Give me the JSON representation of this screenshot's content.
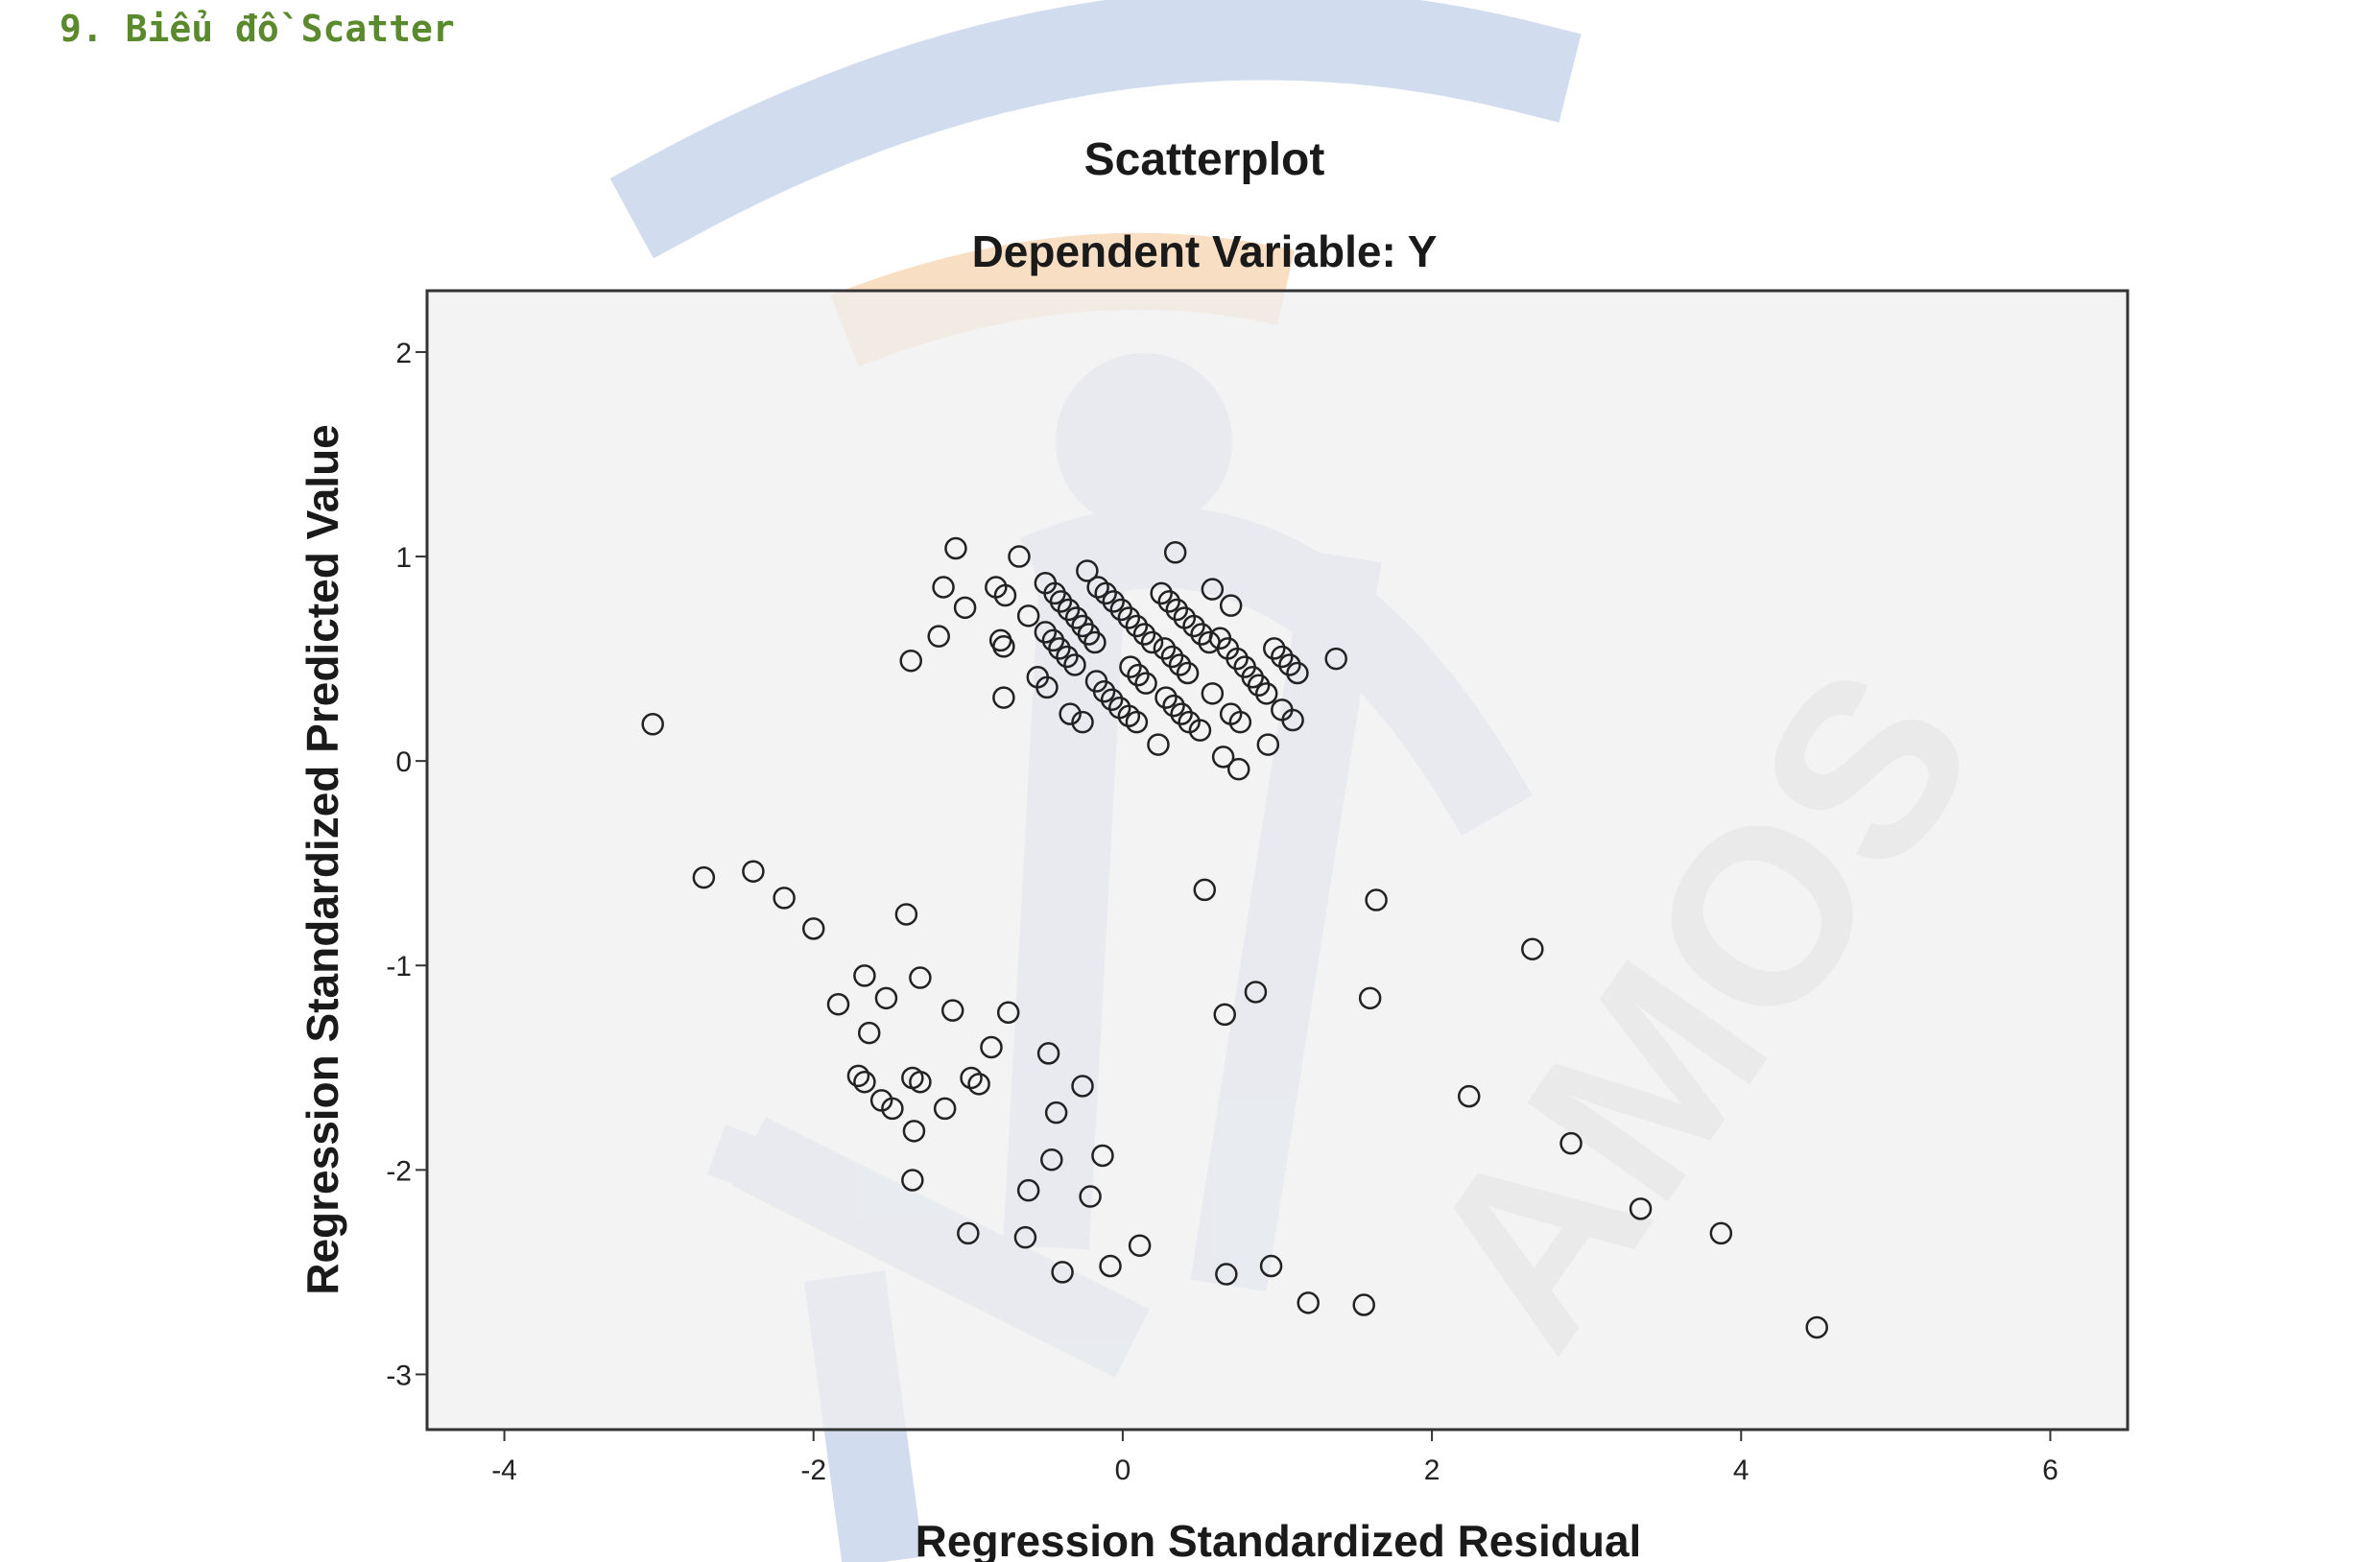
{
  "heading": "9. Biểu đồ Scatter",
  "watermark": {
    "text": "AMOS",
    "colors": {
      "blue": "#c9d7ec",
      "orange": "#f7d9b8",
      "gray": "#d6d6d6"
    }
  },
  "colors": {
    "plot_bg": "#efefef",
    "frame": "#333333",
    "marker": "#222222"
  },
  "chart_data": {
    "type": "scatter",
    "title": "Scatterplot",
    "subtitle": "Dependent Variable: Y",
    "xlabel": "Regression Standardized Residual",
    "ylabel": "Regression Standardized Predicted Value",
    "xlim": [
      -4.5,
      6.5
    ],
    "ylim": [
      -3.27,
      2.3
    ],
    "xticks": [
      -4,
      -2,
      0,
      2,
      4,
      6
    ],
    "yticks": [
      -3,
      -2,
      -1,
      0,
      1,
      2
    ],
    "grid": false,
    "marker": "hollow-circle",
    "points": [
      [
        -3.04,
        0.18
      ],
      [
        -1.08,
        1.04
      ],
      [
        -0.67,
        1.0
      ],
      [
        0.34,
        1.02
      ],
      [
        -1.16,
        0.85
      ],
      [
        -1.02,
        0.75
      ],
      [
        -0.82,
        0.85
      ],
      [
        -0.76,
        0.81
      ],
      [
        -1.19,
        0.61
      ],
      [
        -1.37,
        0.49
      ],
      [
        -0.77,
        0.56
      ],
      [
        -0.79,
        0.59
      ],
      [
        -0.61,
        0.71
      ],
      [
        -0.5,
        0.87
      ],
      [
        -0.44,
        0.82
      ],
      [
        -0.4,
        0.78
      ],
      [
        -0.35,
        0.74
      ],
      [
        -0.3,
        0.7
      ],
      [
        -0.26,
        0.66
      ],
      [
        -0.22,
        0.62
      ],
      [
        -0.18,
        0.58
      ],
      [
        -0.5,
        0.63
      ],
      [
        -0.45,
        0.59
      ],
      [
        -0.41,
        0.55
      ],
      [
        -0.36,
        0.51
      ],
      [
        -0.31,
        0.47
      ],
      [
        -0.55,
        0.41
      ],
      [
        -0.49,
        0.36
      ],
      [
        -0.77,
        0.31
      ],
      [
        -0.34,
        0.23
      ],
      [
        -0.26,
        0.19
      ],
      [
        -0.23,
        0.93
      ],
      [
        -0.16,
        0.85
      ],
      [
        -0.11,
        0.82
      ],
      [
        -0.06,
        0.78
      ],
      [
        -0.01,
        0.74
      ],
      [
        0.04,
        0.7
      ],
      [
        0.09,
        0.66
      ],
      [
        0.14,
        0.62
      ],
      [
        0.19,
        0.58
      ],
      [
        -0.17,
        0.39
      ],
      [
        -0.12,
        0.34
      ],
      [
        -0.07,
        0.3
      ],
      [
        -0.02,
        0.26
      ],
      [
        0.04,
        0.22
      ],
      [
        0.09,
        0.19
      ],
      [
        0.05,
        0.46
      ],
      [
        0.1,
        0.42
      ],
      [
        0.15,
        0.38
      ],
      [
        0.25,
        0.82
      ],
      [
        0.3,
        0.78
      ],
      [
        0.35,
        0.74
      ],
      [
        0.4,
        0.7
      ],
      [
        0.46,
        0.66
      ],
      [
        0.51,
        0.62
      ],
      [
        0.56,
        0.58
      ],
      [
        0.27,
        0.55
      ],
      [
        0.32,
        0.51
      ],
      [
        0.37,
        0.47
      ],
      [
        0.42,
        0.43
      ],
      [
        0.28,
        0.31
      ],
      [
        0.33,
        0.27
      ],
      [
        0.38,
        0.23
      ],
      [
        0.43,
        0.19
      ],
      [
        0.5,
        0.15
      ],
      [
        0.23,
        0.08
      ],
      [
        0.58,
        0.84
      ],
      [
        0.7,
        0.76
      ],
      [
        0.63,
        0.6
      ],
      [
        0.68,
        0.55
      ],
      [
        0.74,
        0.5
      ],
      [
        0.79,
        0.46
      ],
      [
        0.84,
        0.41
      ],
      [
        0.88,
        0.37
      ],
      [
        0.93,
        0.33
      ],
      [
        0.58,
        0.33
      ],
      [
        0.7,
        0.23
      ],
      [
        0.76,
        0.19
      ],
      [
        0.65,
        0.02
      ],
      [
        0.75,
        -0.04
      ],
      [
        0.94,
        0.08
      ],
      [
        0.98,
        0.55
      ],
      [
        1.03,
        0.51
      ],
      [
        1.08,
        0.47
      ],
      [
        1.13,
        0.43
      ],
      [
        1.03,
        0.25
      ],
      [
        1.1,
        0.2
      ],
      [
        1.38,
        0.5
      ],
      [
        -2.71,
        -0.57
      ],
      [
        -2.39,
        -0.54
      ],
      [
        -2.19,
        -0.67
      ],
      [
        -2.0,
        -0.82
      ],
      [
        -1.4,
        -0.75
      ],
      [
        -1.67,
        -1.05
      ],
      [
        -1.53,
        -1.16
      ],
      [
        -1.31,
        -1.06
      ],
      [
        -1.84,
        -1.19
      ],
      [
        -1.64,
        -1.33
      ],
      [
        -1.1,
        -1.22
      ],
      [
        -0.74,
        -1.23
      ],
      [
        -0.85,
        -1.4
      ],
      [
        -1.71,
        -1.54
      ],
      [
        -1.67,
        -1.57
      ],
      [
        -1.56,
        -1.66
      ],
      [
        -1.49,
        -1.7
      ],
      [
        -1.36,
        -1.55
      ],
      [
        -1.31,
        -1.57
      ],
      [
        -0.98,
        -1.55
      ],
      [
        -0.93,
        -1.58
      ],
      [
        -1.15,
        -1.7
      ],
      [
        -1.35,
        -1.81
      ],
      [
        -1.36,
        -2.05
      ],
      [
        -0.48,
        -1.43
      ],
      [
        -0.43,
        -1.72
      ],
      [
        -0.26,
        -1.59
      ],
      [
        -0.46,
        -1.95
      ],
      [
        -0.13,
        -1.93
      ],
      [
        -0.61,
        -2.1
      ],
      [
        -0.21,
        -2.13
      ],
      [
        -1.0,
        -2.31
      ],
      [
        -0.63,
        -2.33
      ],
      [
        -0.39,
        -2.5
      ],
      [
        -0.08,
        -2.47
      ],
      [
        0.11,
        -2.37
      ],
      [
        0.53,
        -0.63
      ],
      [
        0.66,
        -1.24
      ],
      [
        0.86,
        -1.13
      ],
      [
        0.96,
        -2.47
      ],
      [
        0.67,
        -2.51
      ],
      [
        1.2,
        -2.65
      ],
      [
        1.56,
        -2.66
      ],
      [
        1.64,
        -0.68
      ],
      [
        1.6,
        -1.16
      ],
      [
        2.65,
        -0.92
      ],
      [
        2.24,
        -1.64
      ],
      [
        2.9,
        -1.87
      ],
      [
        3.35,
        -2.19
      ],
      [
        3.87,
        -2.31
      ],
      [
        4.49,
        -2.77
      ]
    ]
  }
}
